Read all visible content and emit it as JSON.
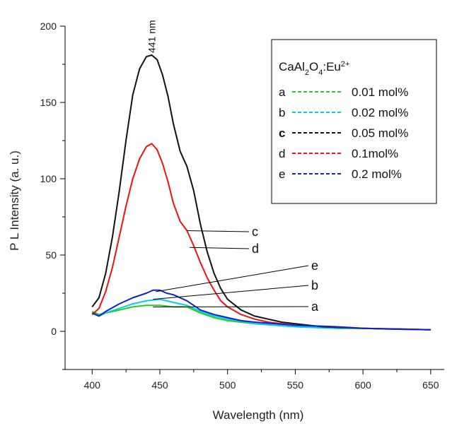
{
  "chart_data": {
    "type": "line",
    "title": "",
    "xlabel": "Wavelength (nm)",
    "ylabel": "P L Intensity (a. u.)",
    "xlim": [
      380,
      660
    ],
    "ylim": [
      -25,
      200
    ],
    "x_ticks": [
      400,
      450,
      500,
      550,
      600,
      650
    ],
    "y_ticks": [
      0,
      50,
      100,
      150,
      200
    ],
    "grid": false,
    "legend_position": "top-right",
    "legend_title": "CaAl2O4:Eu2+",
    "peak_annotation": {
      "text": "441 nm",
      "x": 444,
      "y": 181
    },
    "series": [
      {
        "name": "0.01 mol%",
        "letter": "a",
        "color": "#22cc22",
        "label_point": [
          445,
          16
        ],
        "x": [
          400,
          405,
          410,
          420,
          430,
          440,
          450,
          460,
          470,
          480,
          490,
          500,
          520,
          550,
          580,
          600,
          620,
          650
        ],
        "y": [
          13,
          11,
          12,
          14,
          16,
          17,
          17,
          16,
          16,
          12,
          9,
          7,
          5,
          3,
          2,
          2,
          1.5,
          1
        ]
      },
      {
        "name": "0.02 mol%",
        "letter": "b",
        "color": "#00ccee",
        "label_point": [
          445,
          21
        ],
        "x": [
          400,
          405,
          410,
          420,
          430,
          440,
          450,
          460,
          470,
          480,
          490,
          500,
          520,
          550,
          580,
          600,
          620,
          650
        ],
        "y": [
          12,
          10,
          12,
          15,
          18,
          20,
          21,
          19,
          17,
          13,
          10,
          8,
          5,
          3,
          2,
          2,
          1.5,
          1
        ]
      },
      {
        "name": "0.05 mol%",
        "letter": "c",
        "color": "#111111",
        "label_point": [
          470,
          66
        ],
        "x": [
          400,
          405,
          410,
          415,
          420,
          425,
          430,
          435,
          440,
          444,
          448,
          452,
          456,
          460,
          465,
          470,
          475,
          480,
          485,
          490,
          495,
          500,
          510,
          520,
          530,
          540,
          550,
          570,
          600,
          630,
          650
        ],
        "y": [
          16,
          22,
          38,
          62,
          92,
          125,
          155,
          172,
          180,
          181,
          178,
          168,
          154,
          136,
          118,
          108,
          92,
          70,
          52,
          38,
          28,
          21,
          14,
          10,
          8,
          6,
          5,
          3,
          2,
          1.5,
          1
        ]
      },
      {
        "name": "0.1mol%",
        "letter": "d",
        "color": "#ee1111",
        "label_point": [
          472,
          55
        ],
        "x": [
          400,
          405,
          410,
          415,
          420,
          425,
          430,
          435,
          440,
          444,
          448,
          452,
          456,
          460,
          465,
          470,
          475,
          480,
          485,
          490,
          495,
          500,
          510,
          520,
          530,
          550,
          580,
          600,
          650
        ],
        "y": [
          11,
          15,
          26,
          42,
          62,
          82,
          100,
          113,
          121,
          123,
          119,
          110,
          98,
          84,
          72,
          66,
          56,
          45,
          35,
          27,
          20,
          16,
          11,
          8,
          6,
          4,
          3,
          2,
          1
        ]
      },
      {
        "name": "0.2 mol%",
        "letter": "e",
        "color": "#1122cc",
        "label_point": [
          447,
          26
        ],
        "x": [
          400,
          405,
          410,
          420,
          430,
          440,
          445,
          450,
          455,
          460,
          470,
          480,
          490,
          500,
          510,
          520,
          550,
          580,
          600,
          620,
          650
        ],
        "y": [
          12,
          10,
          13,
          18,
          22,
          25,
          27,
          27,
          25,
          24,
          20,
          14,
          11,
          9,
          7,
          6,
          4,
          3,
          2,
          1.5,
          1
        ]
      }
    ],
    "callout_labels": [
      "c",
      "d",
      "e",
      "b",
      "a"
    ]
  }
}
